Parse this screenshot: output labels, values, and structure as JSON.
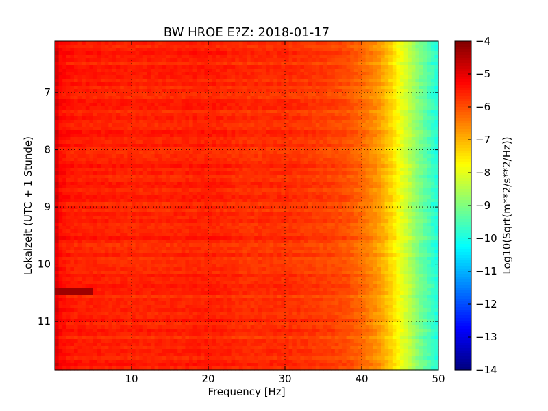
{
  "chart_data": {
    "type": "heatmap",
    "title": "BW HROE E?Z: 2018-01-17",
    "xlabel": "Frequency [Hz]",
    "ylabel": "Lokalzeit (UTC + 1 Stunde)",
    "xlim": [
      0,
      50
    ],
    "ylim": [
      6.1,
      11.85
    ],
    "y_inverted": true,
    "x_ticks": [
      10,
      20,
      30,
      40,
      50
    ],
    "y_ticks": [
      7,
      8,
      9,
      10,
      11
    ],
    "x_tick_labels": [
      "10",
      "20",
      "30",
      "40",
      "50"
    ],
    "y_tick_labels": [
      "7",
      "8",
      "9",
      "10",
      "11"
    ],
    "grid": true,
    "colormap": "jet",
    "colorbar": {
      "label": "Log10(Sqrt(m**2/s**2/Hz))",
      "range": [
        -14,
        -4
      ],
      "ticks": [
        -4,
        -5,
        -6,
        -7,
        -8,
        -9,
        -10,
        -11,
        -12,
        -13,
        -14
      ],
      "tick_labels": [
        "−4",
        "−5",
        "−6",
        "−7",
        "−8",
        "−9",
        "−10",
        "−11",
        "−12",
        "−13",
        "−14"
      ]
    },
    "value_profile": {
      "frequency_hz": [
        0,
        0.5,
        2,
        5,
        10,
        15,
        20,
        25,
        30,
        35,
        38,
        40,
        42,
        43,
        44,
        45,
        46,
        47,
        48,
        49,
        50
      ],
      "log10_amplitude": [
        -4.6,
        -5.3,
        -5.5,
        -5.55,
        -5.6,
        -5.6,
        -5.55,
        -5.7,
        -5.7,
        -5.85,
        -6.0,
        -6.3,
        -6.7,
        -7.0,
        -7.4,
        -7.9,
        -8.3,
        -8.8,
        -9.2,
        -9.6,
        -10.0
      ]
    },
    "features": [
      {
        "type": "dark-stripe",
        "time_hour": 10.45,
        "freq_range_hz": [
          0,
          5
        ],
        "log10_amplitude": -4.3
      }
    ]
  }
}
